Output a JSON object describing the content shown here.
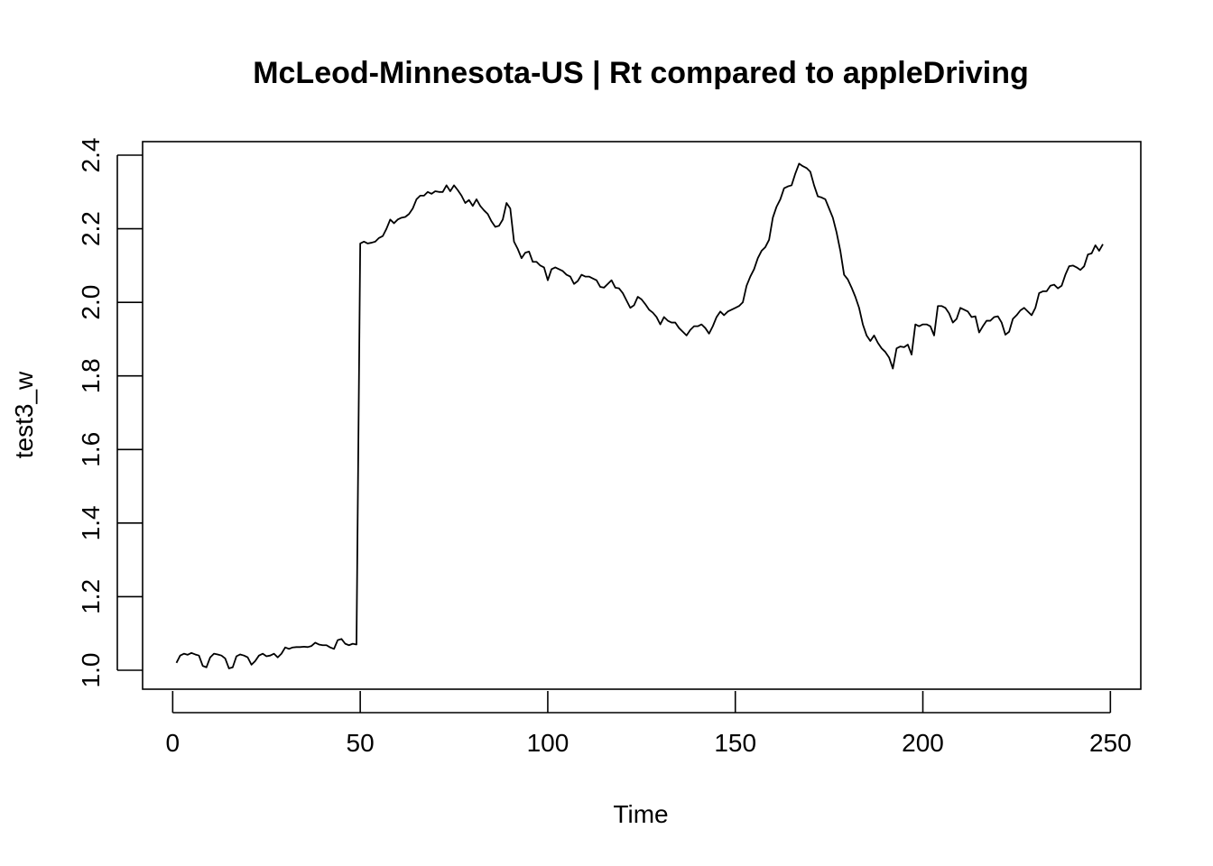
{
  "chart_data": {
    "type": "line",
    "title": "McLeod-Minnesota-US | Rt compared to appleDriving",
    "xlabel": "Time",
    "ylabel": "test3_w",
    "xlim": [
      1,
      248
    ],
    "ylim": [
      1.0,
      2.4
    ],
    "x_ticks": [
      0,
      50,
      100,
      150,
      200,
      250
    ],
    "y_ticks": [
      1.0,
      1.2,
      1.4,
      1.6,
      1.8,
      2.0,
      2.2,
      2.4
    ],
    "x_tick_labels": [
      "0",
      "50",
      "100",
      "150",
      "200",
      "250"
    ],
    "y_tick_labels": [
      "1.0",
      "1.2",
      "1.4",
      "1.6",
      "1.8",
      "2.0",
      "2.2",
      "2.4"
    ],
    "grid": false,
    "legend": "none",
    "series": [
      {
        "color": "#000000",
        "points": [
          [
            1,
            1.02
          ],
          [
            2,
            1.04
          ],
          [
            3,
            1.045
          ],
          [
            4,
            1.042
          ],
          [
            5,
            1.047
          ],
          [
            6,
            1.043
          ],
          [
            7,
            1.04
          ],
          [
            8,
            1.012
          ],
          [
            9,
            1.008
          ],
          [
            10,
            1.035
          ],
          [
            11,
            1.045
          ],
          [
            12,
            1.043
          ],
          [
            13,
            1.04
          ],
          [
            14,
            1.032
          ],
          [
            15,
            1.005
          ],
          [
            16,
            1.008
          ],
          [
            17,
            1.038
          ],
          [
            18,
            1.043
          ],
          [
            19,
            1.04
          ],
          [
            20,
            1.035
          ],
          [
            21,
            1.015
          ],
          [
            22,
            1.025
          ],
          [
            23,
            1.04
          ],
          [
            24,
            1.045
          ],
          [
            25,
            1.038
          ],
          [
            26,
            1.04
          ],
          [
            27,
            1.045
          ],
          [
            28,
            1.035
          ],
          [
            29,
            1.045
          ],
          [
            30,
            1.062
          ],
          [
            31,
            1.058
          ],
          [
            32,
            1.062
          ],
          [
            33,
            1.063
          ],
          [
            34,
            1.063
          ],
          [
            35,
            1.064
          ],
          [
            36,
            1.063
          ],
          [
            37,
            1.066
          ],
          [
            38,
            1.075
          ],
          [
            39,
            1.07
          ],
          [
            40,
            1.068
          ],
          [
            41,
            1.068
          ],
          [
            42,
            1.062
          ],
          [
            43,
            1.058
          ],
          [
            44,
            1.082
          ],
          [
            45,
            1.085
          ],
          [
            46,
            1.072
          ],
          [
            47,
            1.068
          ],
          [
            48,
            1.072
          ],
          [
            49,
            1.07
          ],
          [
            50,
            2.16
          ],
          [
            51,
            2.165
          ],
          [
            52,
            2.16
          ],
          [
            53,
            2.162
          ],
          [
            54,
            2.165
          ],
          [
            55,
            2.175
          ],
          [
            56,
            2.18
          ],
          [
            57,
            2.2
          ],
          [
            58,
            2.225
          ],
          [
            59,
            2.215
          ],
          [
            60,
            2.225
          ],
          [
            61,
            2.23
          ],
          [
            62,
            2.232
          ],
          [
            63,
            2.24
          ],
          [
            64,
            2.255
          ],
          [
            65,
            2.28
          ],
          [
            66,
            2.29
          ],
          [
            67,
            2.29
          ],
          [
            68,
            2.3
          ],
          [
            69,
            2.295
          ],
          [
            70,
            2.302
          ],
          [
            71,
            2.3
          ],
          [
            72,
            2.3
          ],
          [
            73,
            2.318
          ],
          [
            74,
            2.302
          ],
          [
            75,
            2.318
          ],
          [
            76,
            2.305
          ],
          [
            77,
            2.29
          ],
          [
            78,
            2.27
          ],
          [
            79,
            2.278
          ],
          [
            80,
            2.262
          ],
          [
            81,
            2.28
          ],
          [
            82,
            2.262
          ],
          [
            83,
            2.25
          ],
          [
            84,
            2.24
          ],
          [
            85,
            2.22
          ],
          [
            86,
            2.205
          ],
          [
            87,
            2.208
          ],
          [
            88,
            2.225
          ],
          [
            89,
            2.27
          ],
          [
            90,
            2.255
          ],
          [
            91,
            2.165
          ],
          [
            92,
            2.145
          ],
          [
            93,
            2.12
          ],
          [
            94,
            2.135
          ],
          [
            95,
            2.138
          ],
          [
            96,
            2.11
          ],
          [
            97,
            2.11
          ],
          [
            98,
            2.1
          ],
          [
            99,
            2.095
          ],
          [
            100,
            2.06
          ],
          [
            101,
            2.09
          ],
          [
            102,
            2.095
          ],
          [
            103,
            2.09
          ],
          [
            104,
            2.085
          ],
          [
            105,
            2.075
          ],
          [
            106,
            2.07
          ],
          [
            107,
            2.05
          ],
          [
            108,
            2.058
          ],
          [
            109,
            2.075
          ],
          [
            110,
            2.07
          ],
          [
            111,
            2.07
          ],
          [
            112,
            2.065
          ],
          [
            113,
            2.06
          ],
          [
            114,
            2.042
          ],
          [
            115,
            2.04
          ],
          [
            116,
            2.05
          ],
          [
            117,
            2.06
          ],
          [
            118,
            2.04
          ],
          [
            119,
            2.038
          ],
          [
            120,
            2.025
          ],
          [
            121,
            2.005
          ],
          [
            122,
            1.985
          ],
          [
            123,
            1.992
          ],
          [
            124,
            2.015
          ],
          [
            125,
            2.008
          ],
          [
            126,
            1.995
          ],
          [
            127,
            1.98
          ],
          [
            128,
            1.972
          ],
          [
            129,
            1.96
          ],
          [
            130,
            1.94
          ],
          [
            131,
            1.96
          ],
          [
            132,
            1.95
          ],
          [
            133,
            1.945
          ],
          [
            134,
            1.945
          ],
          [
            135,
            1.93
          ],
          [
            136,
            1.92
          ],
          [
            137,
            1.91
          ],
          [
            138,
            1.925
          ],
          [
            139,
            1.935
          ],
          [
            140,
            1.935
          ],
          [
            141,
            1.94
          ],
          [
            142,
            1.93
          ],
          [
            143,
            1.915
          ],
          [
            144,
            1.935
          ],
          [
            145,
            1.96
          ],
          [
            146,
            1.975
          ],
          [
            147,
            1.965
          ],
          [
            148,
            1.975
          ],
          [
            149,
            1.98
          ],
          [
            150,
            1.985
          ],
          [
            151,
            1.99
          ],
          [
            152,
            2.0
          ],
          [
            153,
            2.045
          ],
          [
            154,
            2.07
          ],
          [
            155,
            2.09
          ],
          [
            156,
            2.12
          ],
          [
            157,
            2.14
          ],
          [
            158,
            2.15
          ],
          [
            159,
            2.17
          ],
          [
            160,
            2.23
          ],
          [
            161,
            2.26
          ],
          [
            162,
            2.28
          ],
          [
            163,
            2.31
          ],
          [
            164,
            2.315
          ],
          [
            165,
            2.318
          ],
          [
            166,
            2.35
          ],
          [
            167,
            2.377
          ],
          [
            168,
            2.37
          ],
          [
            169,
            2.365
          ],
          [
            170,
            2.355
          ],
          [
            171,
            2.318
          ],
          [
            172,
            2.288
          ],
          [
            173,
            2.285
          ],
          [
            174,
            2.28
          ],
          [
            175,
            2.255
          ],
          [
            176,
            2.23
          ],
          [
            177,
            2.19
          ],
          [
            178,
            2.14
          ],
          [
            179,
            2.075
          ],
          [
            180,
            2.062
          ],
          [
            181,
            2.04
          ],
          [
            182,
            2.015
          ],
          [
            183,
            1.985
          ],
          [
            184,
            1.94
          ],
          [
            185,
            1.91
          ],
          [
            186,
            1.895
          ],
          [
            187,
            1.91
          ],
          [
            188,
            1.89
          ],
          [
            189,
            1.875
          ],
          [
            190,
            1.865
          ],
          [
            191,
            1.85
          ],
          [
            192,
            1.82
          ],
          [
            193,
            1.875
          ],
          [
            194,
            1.88
          ],
          [
            195,
            1.878
          ],
          [
            196,
            1.885
          ],
          [
            197,
            1.858
          ],
          [
            198,
            1.94
          ],
          [
            199,
            1.935
          ],
          [
            200,
            1.94
          ],
          [
            201,
            1.94
          ],
          [
            202,
            1.935
          ],
          [
            203,
            1.91
          ],
          [
            204,
            1.99
          ],
          [
            205,
            1.99
          ],
          [
            206,
            1.985
          ],
          [
            207,
            1.97
          ],
          [
            208,
            1.945
          ],
          [
            209,
            1.955
          ],
          [
            210,
            1.985
          ],
          [
            211,
            1.98
          ],
          [
            212,
            1.975
          ],
          [
            213,
            1.96
          ],
          [
            214,
            1.962
          ],
          [
            215,
            1.918
          ],
          [
            216,
            1.935
          ],
          [
            217,
            1.95
          ],
          [
            218,
            1.95
          ],
          [
            219,
            1.96
          ],
          [
            220,
            1.962
          ],
          [
            221,
            1.945
          ],
          [
            222,
            1.912
          ],
          [
            223,
            1.92
          ],
          [
            224,
            1.955
          ],
          [
            225,
            1.965
          ],
          [
            226,
            1.978
          ],
          [
            227,
            1.985
          ],
          [
            228,
            1.975
          ],
          [
            229,
            1.965
          ],
          [
            230,
            1.985
          ],
          [
            231,
            2.025
          ],
          [
            232,
            2.03
          ],
          [
            233,
            2.03
          ],
          [
            234,
            2.045
          ],
          [
            235,
            2.048
          ],
          [
            236,
            2.038
          ],
          [
            237,
            2.045
          ],
          [
            238,
            2.075
          ],
          [
            239,
            2.098
          ],
          [
            240,
            2.1
          ],
          [
            241,
            2.095
          ],
          [
            242,
            2.088
          ],
          [
            243,
            2.098
          ],
          [
            244,
            2.13
          ],
          [
            245,
            2.133
          ],
          [
            246,
            2.155
          ],
          [
            247,
            2.14
          ],
          [
            248,
            2.158
          ]
        ]
      }
    ]
  }
}
